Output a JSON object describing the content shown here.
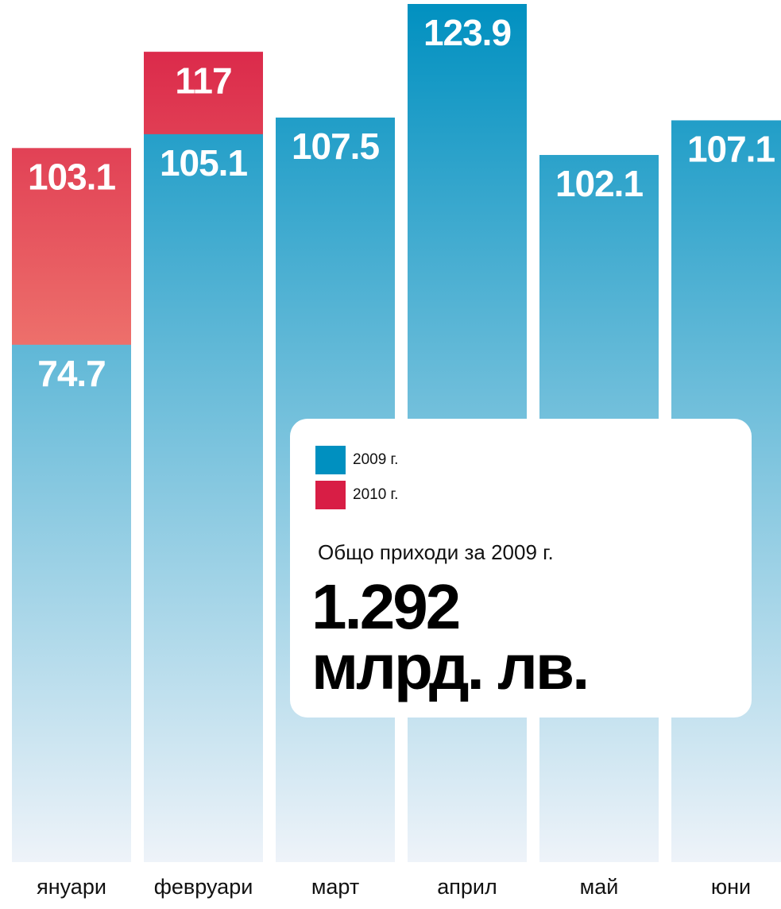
{
  "chart_data": {
    "type": "bar",
    "categories": [
      "януари",
      "февруари",
      "март",
      "април",
      "май",
      "юни"
    ],
    "series": [
      {
        "name": "2010 г.",
        "color": "#d81e45",
        "values": [
          103.1,
          117,
          null,
          null,
          null,
          null
        ]
      },
      {
        "name": "2009 г.",
        "color": "#0090c0",
        "values": [
          74.7,
          105.1,
          107.5,
          123.9,
          102.1,
          107.1
        ]
      }
    ],
    "annotation": {
      "text": "Общо приходи за 2009 г.",
      "lines": [
        "1.292",
        "млрд. лв."
      ]
    }
  }
}
